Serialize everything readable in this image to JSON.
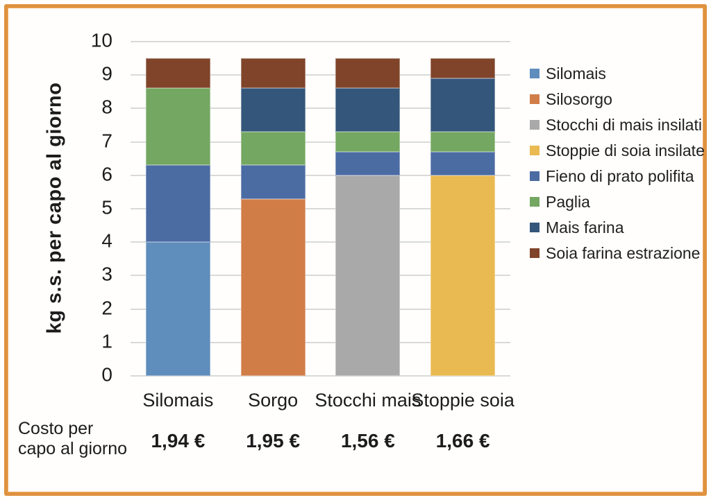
{
  "frame": {
    "border_color": "#e0923f",
    "background": "#fffefc"
  },
  "chart_data": {
    "type": "bar",
    "stacked": true,
    "title": "",
    "xlabel": "",
    "ylabel": "kg s.s. per capo al giorno",
    "ylim": [
      0,
      10
    ],
    "yticks": [
      0,
      1,
      2,
      3,
      4,
      5,
      6,
      7,
      8,
      9,
      10
    ],
    "grid": true,
    "legend_position": "right",
    "categories": [
      "Silomais",
      "Sorgo",
      "Stocchi mais",
      "Stoppie soia"
    ],
    "series": [
      {
        "name": "Silomais",
        "color": "#5f8dbc",
        "values": [
          4.0,
          0,
          0,
          0
        ]
      },
      {
        "name": "Silosorgo",
        "color": "#d17d48",
        "values": [
          0,
          5.3,
          0,
          0
        ]
      },
      {
        "name": "Stocchi di mais insilati",
        "color": "#a9a9a9",
        "values": [
          0,
          0,
          6.0,
          0
        ]
      },
      {
        "name": "Stoppie di soia insilate",
        "color": "#e9ba51",
        "values": [
          0,
          0,
          0,
          6.0
        ]
      },
      {
        "name": "Fieno di prato polifita",
        "color": "#4b6ba3",
        "values": [
          2.3,
          1.0,
          0.7,
          0.7
        ]
      },
      {
        "name": "Paglia",
        "color": "#74a761",
        "values": [
          2.3,
          1.0,
          0.6,
          0.6
        ]
      },
      {
        "name": "Mais farina",
        "color": "#34567a",
        "values": [
          0,
          1.3,
          1.3,
          1.6
        ]
      },
      {
        "name": "Soia farina estrazione",
        "color": "#7f442a",
        "values": [
          0.9,
          0.9,
          0.9,
          0.6
        ]
      }
    ],
    "gridline_color": "#d9d9d9"
  },
  "cost_row": {
    "label_line1": "Costo per",
    "label_line2": "capo al giorno",
    "values": [
      "1,94 €",
      "1,95 €",
      "1,56 €",
      "1,66 €"
    ]
  }
}
